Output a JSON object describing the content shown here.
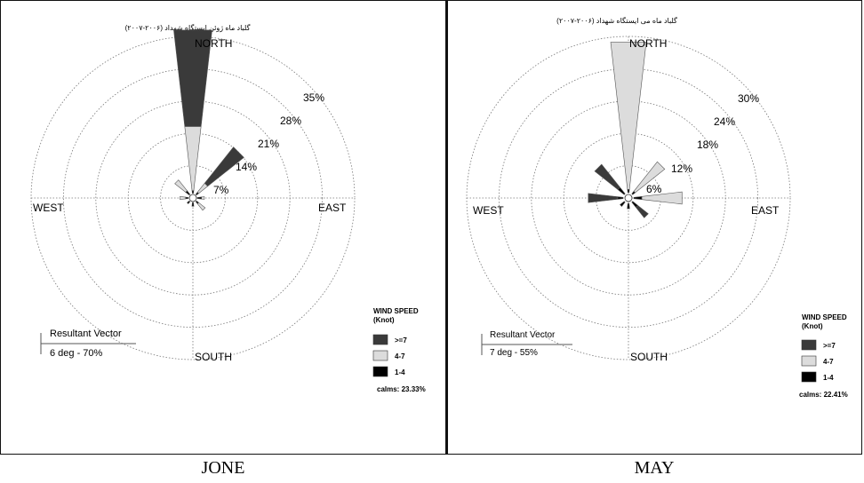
{
  "chart_data": [
    {
      "type": "wind-rose",
      "panel_caption": "JONE",
      "title": "گلباد ماه ژوئن ایستگاه شهداد (۲۰۰۶-۲۰۰۷)",
      "directions": {
        "north": "NORTH",
        "south": "SOUTH",
        "east": "EAST",
        "west": "WEST"
      },
      "ring_percentages": [
        7,
        14,
        21,
        28,
        35
      ],
      "ring_labels": [
        "7%",
        "14%",
        "21%",
        "28%",
        "35%"
      ],
      "legend_title": "WIND SPEED",
      "legend_unit": "(Knot)",
      "speed_classes": [
        {
          "label": ">=7",
          "color": "#3a3a3a"
        },
        {
          "label": "4-7",
          "color": "#dcdcdc"
        },
        {
          "label": "1-4",
          "color": "#000000"
        }
      ],
      "calms_text": "calms:  23.33%",
      "resultant_label": "Resultant Vector",
      "resultant_value": "6 deg - 70%",
      "petals": [
        {
          "direction_deg": 0,
          "speeds": [
            0.6,
            14.0,
            21.0
          ]
        },
        {
          "direction_deg": 22.5,
          "speeds": [
            0.0,
            0.0,
            0.0
          ]
        },
        {
          "direction_deg": 45,
          "speeds": [
            0.6,
            2.5,
            10.0
          ]
        },
        {
          "direction_deg": 67.5,
          "speeds": [
            0.0,
            0.0,
            0.0
          ]
        },
        {
          "direction_deg": 90,
          "speeds": [
            0.9,
            0.6,
            0.0
          ]
        },
        {
          "direction_deg": 135,
          "speeds": [
            0.6,
            1.8,
            0.0
          ]
        },
        {
          "direction_deg": 180,
          "speeds": [
            0.8,
            0.0,
            0.0
          ]
        },
        {
          "direction_deg": 225,
          "speeds": [
            0.6,
            0.0,
            0.0
          ]
        },
        {
          "direction_deg": 270,
          "speeds": [
            0.6,
            1.2,
            0.0
          ]
        },
        {
          "direction_deg": 315,
          "speeds": [
            1.0,
            3.0,
            0.0
          ]
        }
      ]
    },
    {
      "type": "wind-rose",
      "panel_caption": "MAY",
      "title": "گلباد ماه می ایستگاه شهداد (۲۰۰۶-۲۰۰۷)",
      "directions": {
        "north": "NORTH",
        "south": "SOUTH",
        "east": "EAST",
        "west": "WEST"
      },
      "ring_percentages": [
        6,
        12,
        18,
        24,
        30
      ],
      "ring_labels": [
        "6%",
        "12%",
        "18%",
        "24%",
        "30%"
      ],
      "legend_title": "WIND SPEED",
      "legend_unit": "(Knot)",
      "speed_classes": [
        {
          "label": ">=7",
          "color": "#3a3a3a"
        },
        {
          "label": "4-7",
          "color": "#dcdcdc"
        },
        {
          "label": "1-4",
          "color": "#000000"
        }
      ],
      "calms_text": "calms: 22.41%",
      "resultant_label": "Resultant Vector",
      "resultant_value": "7 deg - 55%",
      "petals": [
        {
          "direction_deg": 0,
          "speeds": [
            0.6,
            27.5,
            0.0
          ]
        },
        {
          "direction_deg": 45,
          "speeds": [
            0.6,
            7.0,
            0.0
          ]
        },
        {
          "direction_deg": 90,
          "speeds": [
            1.5,
            7.5,
            0.0
          ]
        },
        {
          "direction_deg": 135,
          "speeds": [
            1.2,
            0.0,
            2.5
          ]
        },
        {
          "direction_deg": 180,
          "speeds": [
            1.0,
            0.0,
            0.0
          ]
        },
        {
          "direction_deg": 225,
          "speeds": [
            1.0,
            0.0,
            0.0
          ]
        },
        {
          "direction_deg": 270,
          "speeds": [
            1.0,
            0.0,
            5.5
          ]
        },
        {
          "direction_deg": 315,
          "speeds": [
            1.5,
            0.0,
            5.5
          ]
        }
      ]
    }
  ]
}
